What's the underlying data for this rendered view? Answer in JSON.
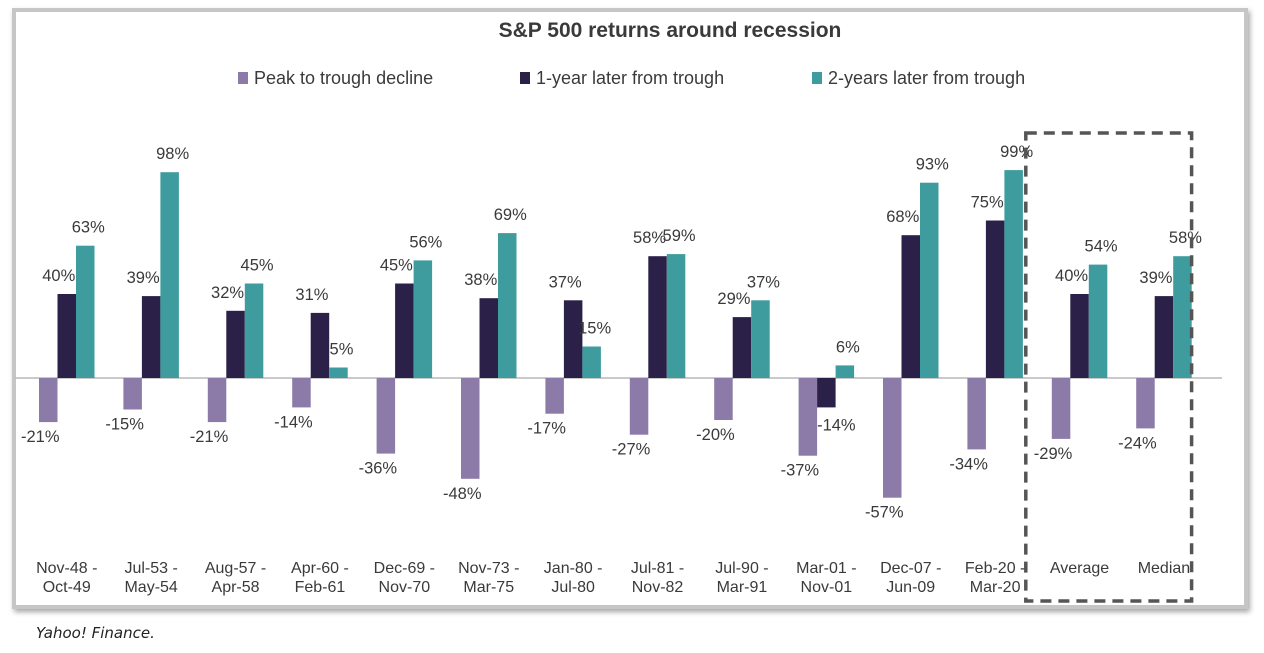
{
  "source": "Yahoo! Finance.",
  "chart_data": {
    "type": "bar",
    "title": "S&P 500 returns around recession",
    "xlabel": "",
    "ylabel": "",
    "ylim": [
      -60,
      105
    ],
    "grid": false,
    "legend": "top",
    "categories": [
      [
        "Nov-48 -",
        "Oct-49"
      ],
      [
        "Jul-53 -",
        "May-54"
      ],
      [
        "Aug-57 -",
        "Apr-58"
      ],
      [
        "Apr-60 -",
        "Feb-61"
      ],
      [
        "Dec-69 -",
        "Nov-70"
      ],
      [
        "Nov-73 -",
        "Mar-75"
      ],
      [
        "Jan-80 -",
        "Jul-80"
      ],
      [
        "Jul-81 -",
        "Nov-82"
      ],
      [
        "Jul-90 -",
        "Mar-91"
      ],
      [
        "Mar-01 -",
        "Nov-01"
      ],
      [
        "Dec-07 -",
        "Jun-09"
      ],
      [
        "Feb-20 -",
        "Mar-20"
      ],
      [
        "Average"
      ],
      [
        "Median"
      ]
    ],
    "series": [
      {
        "name": "Peak to trough decline",
        "color": "#8c7ba8",
        "values": [
          -21,
          -15,
          -21,
          -14,
          -36,
          -48,
          -17,
          -27,
          -20,
          -37,
          -57,
          -34,
          -29,
          -24
        ],
        "labels": [
          "-21%",
          "-15%",
          "-21%",
          "-14%",
          "-36%",
          "-48%",
          "-17%",
          "-27%",
          "-20%",
          "-37%",
          "-57%",
          "-34%",
          "-29%",
          "-24%"
        ]
      },
      {
        "name": "1-year later from trough",
        "color": "#2b2048",
        "values": [
          40,
          39,
          32,
          31,
          45,
          38,
          37,
          58,
          29,
          -14,
          68,
          75,
          40,
          39
        ],
        "labels": [
          "40%",
          "39%",
          "32%",
          "31%",
          "45%",
          "38%",
          "37%",
          "58%",
          "29%",
          "-14%",
          "68%",
          "75%",
          "40%",
          "39%"
        ]
      },
      {
        "name": "2-years later from trough",
        "color": "#3e9c9e",
        "values": [
          63,
          98,
          45,
          5,
          56,
          69,
          15,
          59,
          37,
          6,
          93,
          99,
          54,
          58
        ],
        "labels": [
          "63%",
          "98%",
          "45%",
          "5%",
          "56%",
          "69%",
          "15%",
          "59%",
          "37%",
          "6%",
          "93%",
          "99%",
          "54%",
          "58%"
        ]
      }
    ],
    "highlight_box": {
      "categories": [
        "Average",
        "Median"
      ],
      "style": "dashed",
      "color": "#555555"
    }
  }
}
